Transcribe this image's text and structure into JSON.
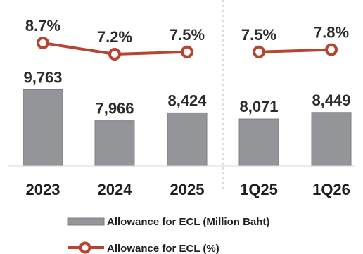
{
  "chart_data": {
    "type": "bar+line",
    "categories": [
      "2023",
      "2024",
      "2025",
      "1Q25",
      "1Q26"
    ],
    "series": [
      {
        "name": "Allowance for ECL (Million Baht)",
        "kind": "bar",
        "values": [
          9763,
          7966,
          8424,
          8071,
          8449
        ],
        "labels": [
          "9,763",
          "7,966",
          "8,424",
          "8,071",
          "8,449"
        ]
      },
      {
        "name": "Allowance for ECL (%)",
        "kind": "line",
        "values": [
          8.7,
          7.2,
          7.5,
          7.5,
          7.8
        ],
        "labels": [
          "8.7%",
          "7.2%",
          "7.5%",
          "7.5%",
          "7.8%"
        ]
      }
    ],
    "line_segments": [
      [
        0,
        1,
        2
      ],
      [
        3,
        4
      ]
    ],
    "divider_after_index": 2,
    "legend_position": "bottom",
    "grid": false,
    "colors": {
      "bar": "#939598",
      "line": "#b8432f"
    }
  }
}
